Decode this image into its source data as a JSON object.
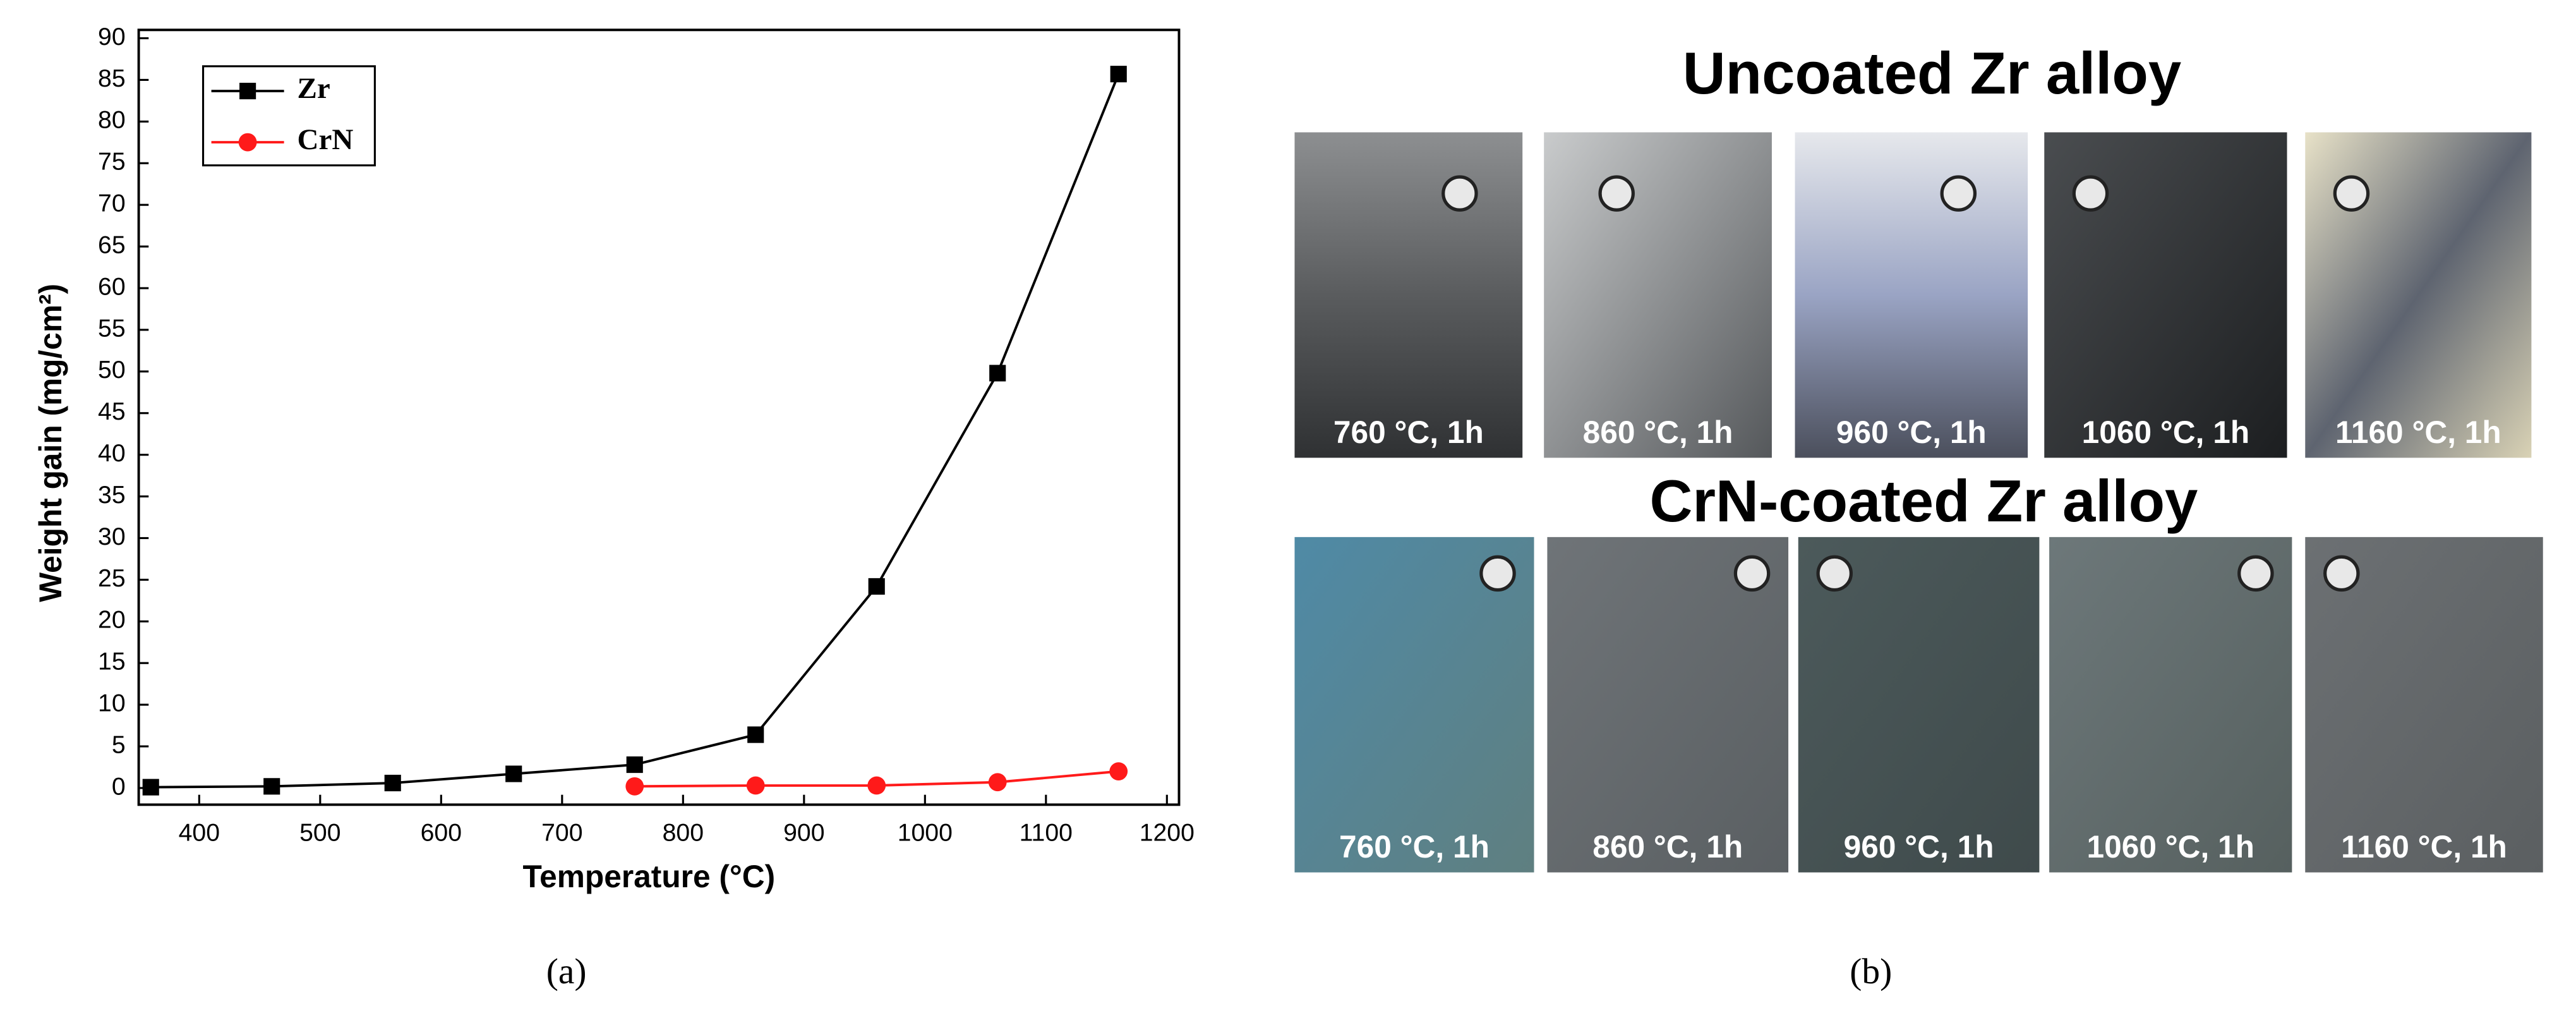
{
  "chart_data": {
    "type": "line",
    "x_label": "Temperature (°C)",
    "y_label": "Weight gain (mg/cm²)",
    "xlim": [
      350,
      1210
    ],
    "xticks": [
      400,
      500,
      600,
      700,
      800,
      900,
      1000,
      1100,
      1200
    ],
    "ylim": [
      -2,
      91
    ],
    "yticks": [
      0,
      5,
      10,
      15,
      20,
      25,
      30,
      35,
      40,
      45,
      50,
      55,
      60,
      65,
      70,
      75,
      80,
      85,
      90
    ],
    "legend": "upper left",
    "series": [
      {
        "name": "Zr",
        "color": "#000000",
        "marker": "square",
        "x": [
          360,
          460,
          560,
          660,
          760,
          860,
          960,
          1060,
          1160
        ],
        "values": [
          0.1,
          0.2,
          0.6,
          1.7,
          2.8,
          6.4,
          24.2,
          49.8,
          85.7
        ]
      },
      {
        "name": "CrN",
        "color": "#ff1a1a",
        "marker": "circle",
        "x": [
          760,
          860,
          960,
          1060,
          1160
        ],
        "values": [
          0.2,
          0.3,
          0.3,
          0.7,
          2.0
        ]
      }
    ]
  },
  "panel_b": {
    "rows": [
      {
        "title": "Uncoated Zr alloy",
        "labels": [
          "760 °C, 1h",
          "860 °C, 1h",
          "960 °C, 1h",
          "1060 °C, 1h",
          "1160 °C, 1h"
        ]
      },
      {
        "title": "CrN-coated Zr alloy",
        "labels": [
          "760 °C, 1h",
          "860 °C, 1h",
          "960 °C, 1h",
          "1060 °C, 1h",
          "1160 °C, 1h"
        ]
      }
    ]
  },
  "captions": [
    "(a)",
    "(b)"
  ]
}
